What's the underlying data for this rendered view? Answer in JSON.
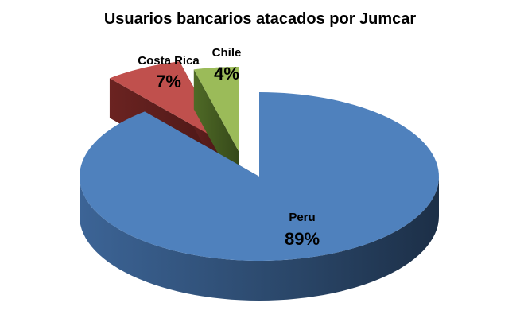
{
  "chart_data": {
    "type": "pie",
    "style": "3d-exploded",
    "title": "Usuarios bancarios atacados por Jumcar",
    "slices": [
      {
        "label": "Peru",
        "value": 89,
        "display": "89%",
        "color": "#4F81BD"
      },
      {
        "label": "Costa Rica",
        "value": 7,
        "display": "7%",
        "color": "#C0504D"
      },
      {
        "label": "Chile",
        "value": 4,
        "display": "4%",
        "color": "#9BBB59"
      }
    ],
    "legend": "none"
  }
}
